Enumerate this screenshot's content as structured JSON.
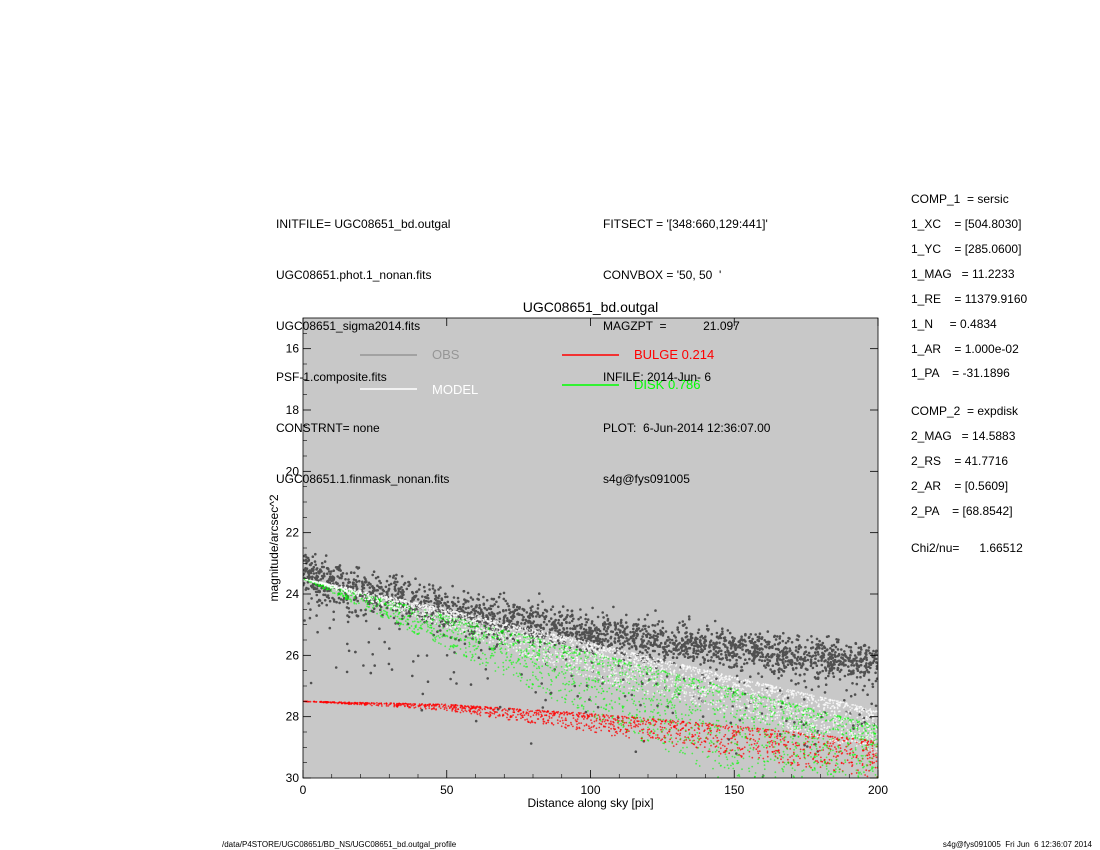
{
  "header_left": [
    "INITFILE= UGC08651_bd.outgal",
    "UGC08651.phot.1_nonan.fits",
    "UGC08651_sigma2014.fits",
    "PSF-1.composite.fits",
    "CONSTRNT= none",
    "UGC08651.1.finmask_nonan.fits"
  ],
  "header_mid": [
    "FITSECT = '[348:660,129:441]'",
    "CONVBOX = '50, 50  '",
    "MAGZPT  =           21.097",
    "INFILE: 2014-Jun- 6",
    "PLOT:  6-Jun-2014 12:36:07.00",
    "s4g@fys091005"
  ],
  "params": [
    "COMP_1  = sersic",
    "1_XC    = [504.8030]",
    "1_YC    = [285.0600]",
    "1_MAG   = 11.2233",
    "1_RE    = 11379.9160",
    "1_N     = 0.4834",
    "1_AR    = 1.000e-02",
    "1_PA    = -31.1896",
    "COMP_2  = expdisk",
    "2_MAG   = 14.5883",
    "2_RS    = 41.7716",
    "2_AR    = [0.5609]",
    "2_PA    = [68.8542]",
    "Chi2/nu=      1.66512"
  ],
  "footer_left": "/data/P4STORE/UGC08651/BD_NS/UGC08651_bd.outgal_profile",
  "footer_right": "s4g@fys091005  Fri Jun  6 12:36:07 2014",
  "chart_data": {
    "type": "scatter",
    "title": "UGC08651_bd.outgal",
    "xlabel": "Distance along sky [pix]",
    "ylabel": "magnitude/arcsec^2",
    "xlim": [
      0,
      200
    ],
    "ylim": [
      30,
      15
    ],
    "y_inverted": true,
    "xticks": [
      0,
      50,
      100,
      150,
      200
    ],
    "yticks": [
      16,
      18,
      20,
      22,
      24,
      26,
      28,
      30
    ],
    "background": "#c8c8c8",
    "legend": [
      {
        "label": "OBS",
        "color": "#969696"
      },
      {
        "label": "MODEL",
        "color": "#ffffff"
      },
      {
        "label": "BULGE  0.214",
        "color": "#ff0000"
      },
      {
        "label": "DISK  0.786",
        "color": "#00ff00"
      }
    ],
    "series": [
      {
        "name": "OBS",
        "color": "#505050",
        "trend": {
          "x": [
            0,
            50,
            100,
            150,
            200
          ],
          "y": [
            23.4,
            24.5,
            25.3,
            25.8,
            26.3
          ]
        },
        "spread_mag": 0.6
      },
      {
        "name": "MODEL",
        "color": "#ffffff",
        "upper": {
          "x": [
            0,
            50,
            100,
            150,
            200
          ],
          "y": [
            23.5,
            24.5,
            25.6,
            26.7,
            27.8
          ]
        },
        "lower": {
          "x": [
            0,
            50,
            100,
            150,
            200
          ],
          "y": [
            23.5,
            25.1,
            26.8,
            28.0,
            29.2
          ]
        }
      },
      {
        "name": "BULGE",
        "color": "#ff0000",
        "upper": {
          "x": [
            0,
            50,
            100,
            150,
            200
          ],
          "y": [
            27.5,
            27.6,
            27.9,
            28.3,
            28.8
          ]
        },
        "lower": {
          "x": [
            0,
            50,
            100,
            150,
            200
          ],
          "y": [
            27.5,
            27.8,
            28.5,
            29.3,
            30.0
          ]
        }
      },
      {
        "name": "DISK",
        "color": "#00ff00",
        "upper": {
          "x": [
            0,
            50,
            100,
            150,
            200
          ],
          "y": [
            23.5,
            24.7,
            25.9,
            27.1,
            28.3
          ]
        },
        "lower": {
          "x": [
            0,
            50,
            100,
            145
          ],
          "y": [
            23.5,
            25.8,
            28.0,
            30.0
          ]
        }
      }
    ]
  }
}
